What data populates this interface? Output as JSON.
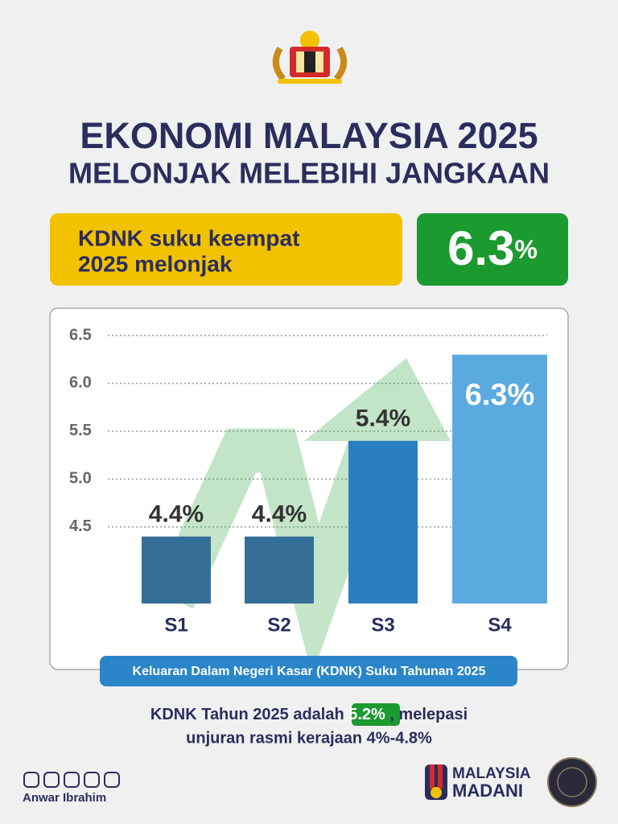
{
  "header": {
    "title_lines": [
      "EKONOMI MALAYSIA 2025",
      "MELONJAK MELEBIHI JANGKAAN"
    ]
  },
  "highlight": {
    "text_lines": [
      "KDNK suku keempat",
      "2025 melonjak"
    ],
    "value": "6.3",
    "unit": "%"
  },
  "chart_data": {
    "type": "bar",
    "categories": [
      "S1",
      "S2",
      "S3",
      "S4"
    ],
    "values": [
      4.4,
      4.4,
      5.4,
      6.3
    ],
    "value_labels": [
      "4.4%",
      "4.4%",
      "5.4%",
      "6.3%"
    ],
    "colors": [
      "#356f97",
      "#356f97",
      "#2a7fc1",
      "#5aaae0"
    ],
    "ylim": [
      3.7,
      6.5
    ],
    "yticks": [
      4.5,
      {
        "value": 5,
        "label": "5.0"
      },
      5.5,
      {
        "value": 6,
        "label": "6.0"
      },
      6.5
    ],
    "grid": true,
    "caption": "Keluaran Dalam Negeri Kasar (KDNK) Suku Tahunan 2025"
  },
  "summary": {
    "line1_start": "KDNK Tahun 2025 adalah",
    "line1_value": "5.2%",
    "line1_end": ", melepasi",
    "line2": "unjuran rasmi kerajaan 4%-4.8%"
  },
  "footer": {
    "author": "Anwar Ibrahim",
    "brand_lines": [
      "MALAYSIA",
      "MADANI"
    ]
  }
}
